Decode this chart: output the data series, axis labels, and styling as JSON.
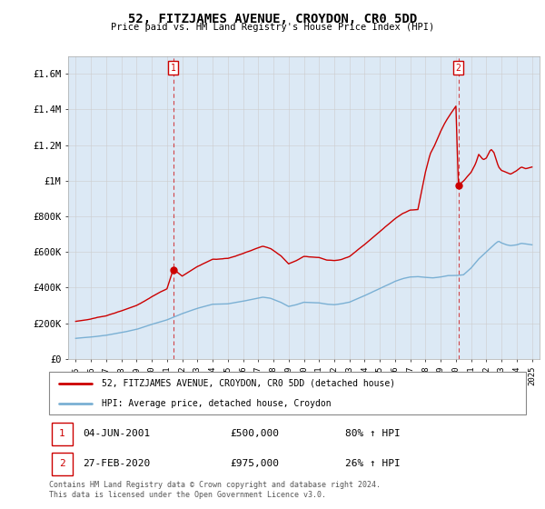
{
  "title": "52, FITZJAMES AVENUE, CROYDON, CR0 5DD",
  "subtitle": "Price paid vs. HM Land Registry's House Price Index (HPI)",
  "footer": "Contains HM Land Registry data © Crown copyright and database right 2024.\nThis data is licensed under the Open Government Licence v3.0.",
  "legend_line1": "52, FITZJAMES AVENUE, CROYDON, CR0 5DD (detached house)",
  "legend_line2": "HPI: Average price, detached house, Croydon",
  "sale1_label": "1",
  "sale1_date": "04-JUN-2001",
  "sale1_price": "£500,000",
  "sale1_hpi": "80% ↑ HPI",
  "sale1_x": 2001.42,
  "sale1_y": 500000,
  "sale2_label": "2",
  "sale2_date": "27-FEB-2020",
  "sale2_price": "£975,000",
  "sale2_hpi": "26% ↑ HPI",
  "sale2_x": 2020.16,
  "sale2_y": 975000,
  "red_color": "#cc0000",
  "blue_color": "#7ab0d4",
  "fill_color": "#dce9f5",
  "dashed_color": "#cc0000",
  "background_color": "#ffffff",
  "grid_color": "#cccccc",
  "ylim": [
    0,
    1700000
  ],
  "xlim": [
    1994.5,
    2025.5
  ],
  "yticks": [
    0,
    200000,
    400000,
    600000,
    800000,
    1000000,
    1200000,
    1400000,
    1600000
  ],
  "ytick_labels": [
    "£0",
    "£200K",
    "£400K",
    "£600K",
    "£800K",
    "£1M",
    "£1.2M",
    "£1.4M",
    "£1.6M"
  ]
}
